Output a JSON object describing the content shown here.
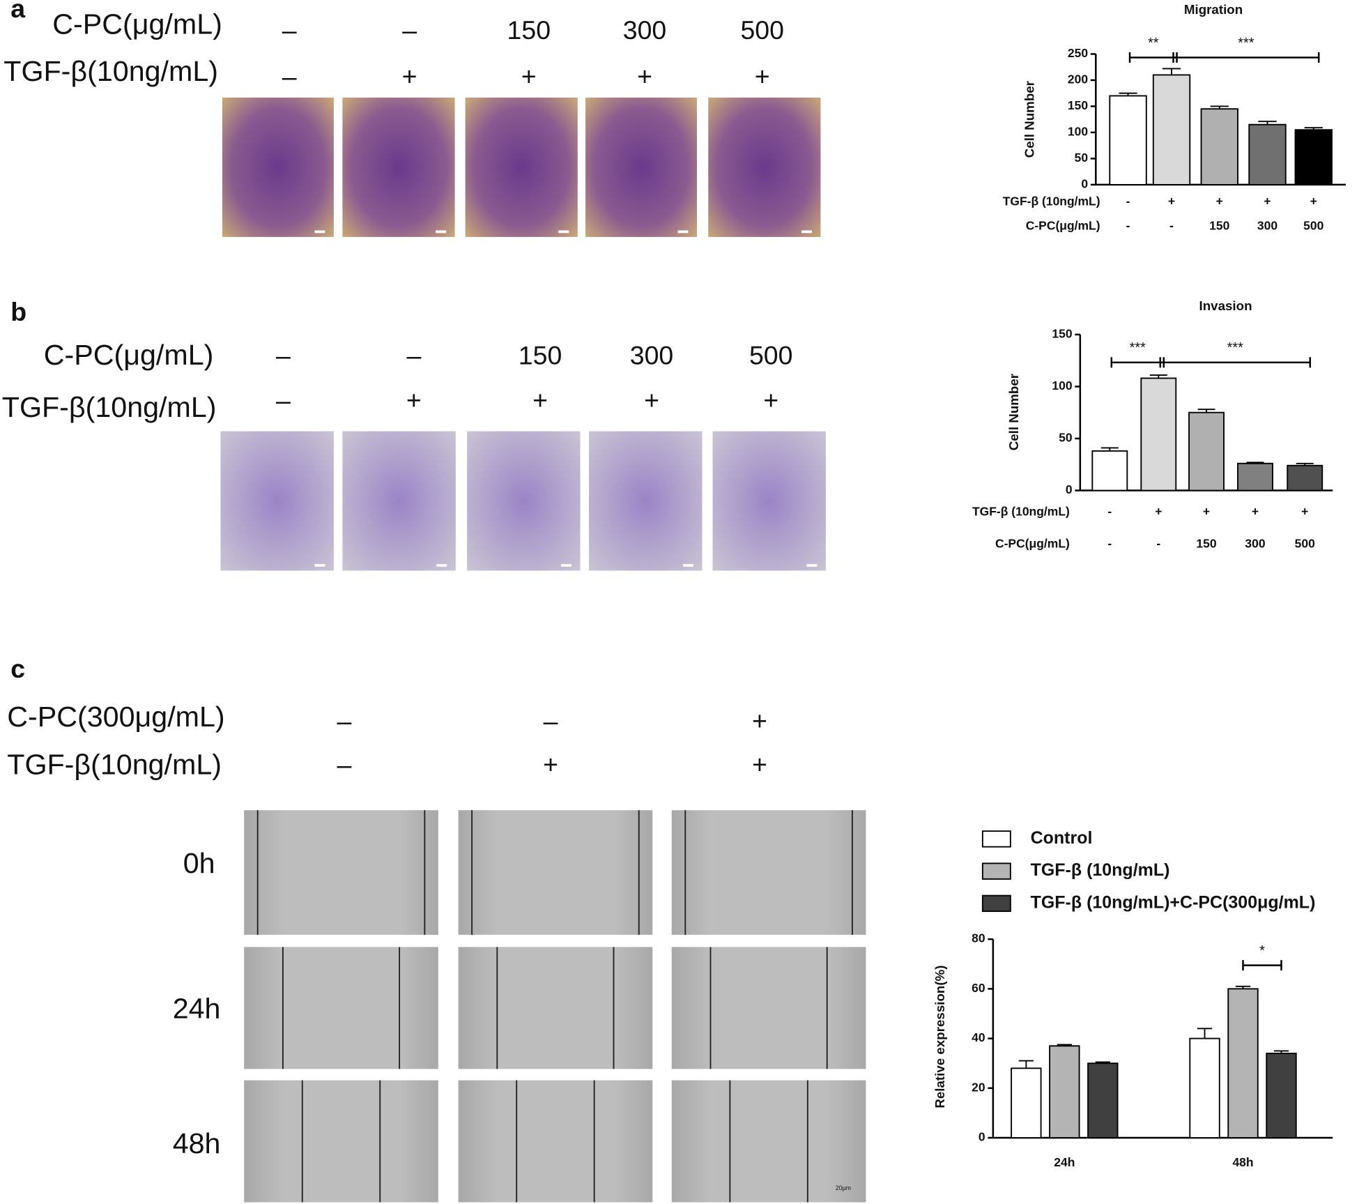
{
  "panels": [
    {
      "label": "a",
      "treatments": [
        {
          "name": "C-PC(μg/mL)",
          "levels": [
            "–",
            "–",
            "150",
            "300",
            "500"
          ]
        },
        {
          "name": "TGF-β(10ng/mL)",
          "levels": [
            "–",
            "+",
            "+",
            "+",
            "+"
          ]
        }
      ]
    },
    {
      "label": "b",
      "treatments": [
        {
          "name": "C-PC(μg/mL)",
          "levels": [
            "–",
            "–",
            "150",
            "300",
            "500"
          ]
        },
        {
          "name": "TGF-β(10ng/mL)",
          "levels": [
            "–",
            "+",
            "+",
            "+",
            "+"
          ]
        }
      ]
    },
    {
      "label": "c",
      "treatments": [
        {
          "name": "C-PC(300μg/mL)",
          "levels": [
            "–",
            "–",
            "+"
          ]
        },
        {
          "name": "TGF-β(10ng/mL)",
          "levels": [
            "–",
            "+",
            "+"
          ]
        }
      ],
      "times": [
        "0h",
        "24h",
        "48h"
      ],
      "scale_bar": "20μm"
    }
  ],
  "chart_data": [
    {
      "type": "bar",
      "title": "Migration",
      "ylabel": "Cell Number",
      "rows": [
        {
          "name": "TGF-β (10ng/mL)",
          "levels": [
            "-",
            "+",
            "+",
            "+",
            "+"
          ]
        },
        {
          "name": "C-PC(μg/mL)",
          "levels": [
            "-",
            "-",
            "150",
            "300",
            "500"
          ]
        }
      ],
      "values": [
        170,
        210,
        145,
        115,
        105
      ],
      "errors": [
        5,
        12,
        5,
        6,
        4
      ],
      "colors": [
        "#ffffff",
        "#d9d9d9",
        "#b0b0b0",
        "#707070",
        "#000000"
      ],
      "ylim": [
        0,
        250
      ],
      "yticks": [
        0,
        50,
        100,
        150,
        200,
        250
      ],
      "significance": [
        "**",
        "***"
      ]
    },
    {
      "type": "bar",
      "title": "Invasion",
      "ylabel": "Cell Number",
      "rows": [
        {
          "name": "TGF-β (10ng/mL)",
          "levels": [
            "-",
            "+",
            "+",
            "+",
            "+"
          ]
        },
        {
          "name": "C-PC(μg/mL)",
          "levels": [
            "-",
            "-",
            "150",
            "300",
            "500"
          ]
        }
      ],
      "values": [
        38,
        108,
        75,
        26,
        24
      ],
      "errors": [
        3,
        3,
        3,
        1,
        2
      ],
      "colors": [
        "#ffffff",
        "#d9d9d9",
        "#b0b0b0",
        "#808080",
        "#505050"
      ],
      "ylim": [
        0,
        150
      ],
      "yticks": [
        0,
        50,
        100,
        150
      ],
      "significance": [
        "***",
        "***"
      ]
    },
    {
      "type": "bar",
      "ylabel": "Relative expression(%)",
      "categories": [
        "24h",
        "48h"
      ],
      "series": [
        {
          "name": "Control",
          "color": "#ffffff",
          "values": [
            28,
            40
          ],
          "errors": [
            3,
            4
          ]
        },
        {
          "name": "TGF-β (10ng/mL)",
          "color": "#b4b4b4",
          "values": [
            37,
            60
          ],
          "errors": [
            0.5,
            1
          ]
        },
        {
          "name": "TGF-β (10ng/mL)+C-PC(300μg/mL)",
          "color": "#404040",
          "values": [
            30,
            34
          ],
          "errors": [
            0.5,
            1
          ]
        }
      ],
      "ylim": [
        0,
        80
      ],
      "yticks": [
        0,
        20,
        40,
        60,
        80
      ],
      "significance": [
        "*"
      ]
    }
  ]
}
